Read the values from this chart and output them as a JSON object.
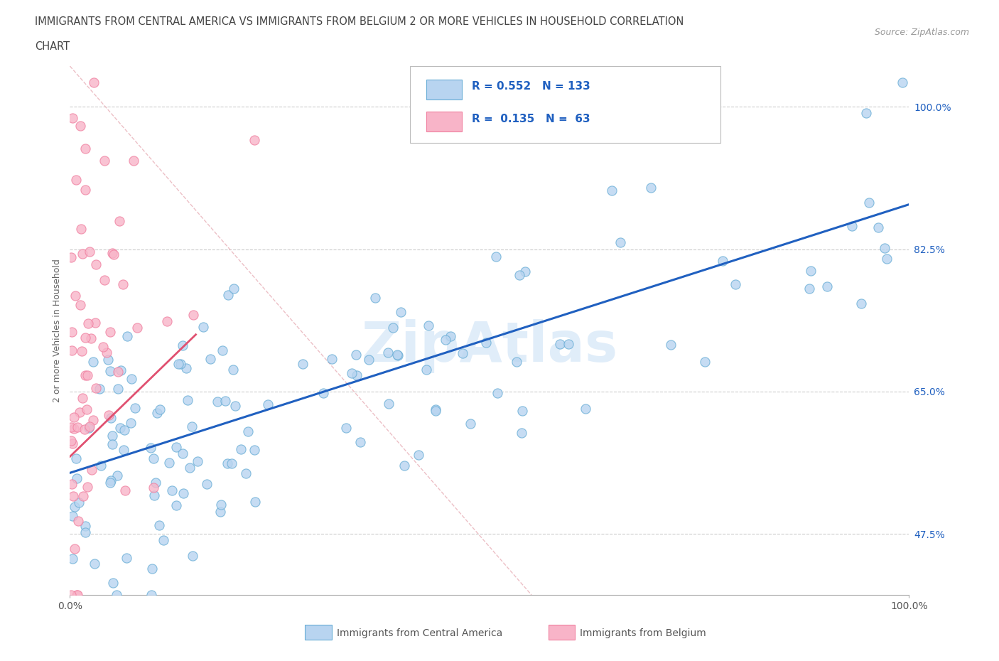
{
  "title_line1": "IMMIGRANTS FROM CENTRAL AMERICA VS IMMIGRANTS FROM BELGIUM 2 OR MORE VEHICLES IN HOUSEHOLD CORRELATION",
  "title_line2": "CHART",
  "source": "Source: ZipAtlas.com",
  "ylabel": "2 or more Vehicles in Household",
  "x_min": 0.0,
  "x_max": 100.0,
  "y_min": 40.0,
  "y_max": 105.0,
  "y_ticks": [
    47.5,
    65.0,
    82.5,
    100.0
  ],
  "x_ticks": [
    0.0,
    100.0
  ],
  "blue_R": 0.552,
  "blue_N": 133,
  "pink_R": 0.135,
  "pink_N": 63,
  "blue_color": "#b8d4f0",
  "blue_edge": "#6aaed6",
  "pink_color": "#f8b4c8",
  "pink_edge": "#f080a0",
  "blue_line_color": "#2060c0",
  "pink_line_color": "#e05070",
  "diag_line_color": "#e8b0b8",
  "watermark": "ZipAtlas",
  "legend_label1": "Immigrants from Central America",
  "legend_label2": "Immigrants from Belgium",
  "blue_trend_x0": 0.0,
  "blue_trend_y0": 55.0,
  "blue_trend_x1": 100.0,
  "blue_trend_y1": 88.0,
  "pink_trend_x0": 0.0,
  "pink_trend_y0": 57.0,
  "pink_trend_x1": 15.0,
  "pink_trend_y1": 72.0,
  "diag_x0": 0.0,
  "diag_y0": 105.0,
  "diag_x1": 55.0,
  "diag_y1": 40.0
}
